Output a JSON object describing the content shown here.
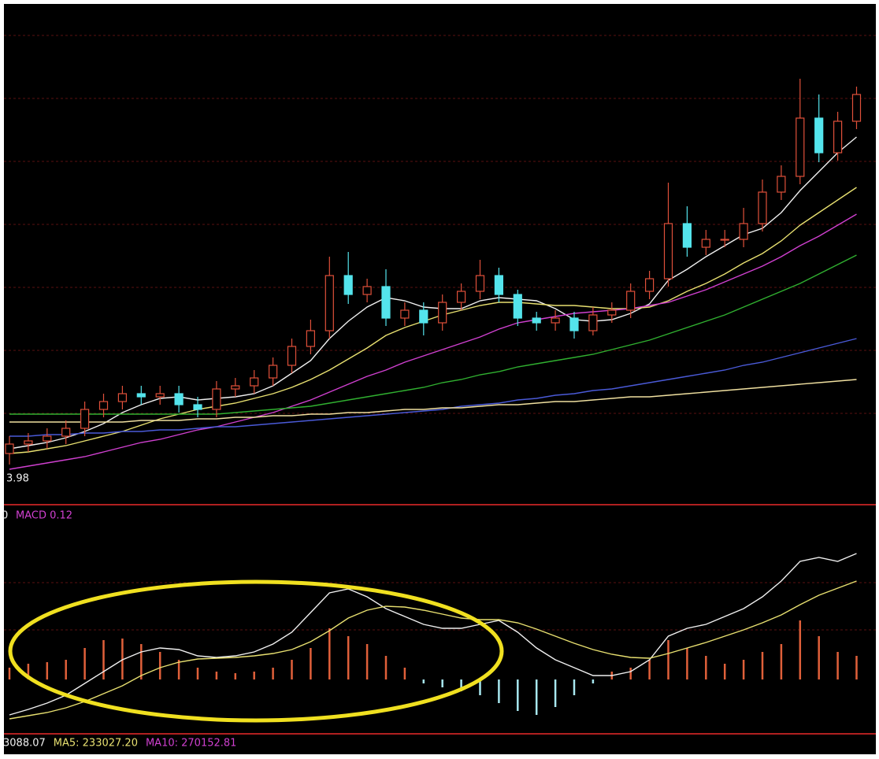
{
  "chart_data": [
    {
      "type": "candlestick",
      "open": [
        4.05,
        4.11,
        4.13,
        4.16,
        4.21,
        4.33,
        4.38,
        4.43,
        4.41,
        4.43,
        4.36,
        4.33,
        4.46,
        4.48,
        4.53,
        4.61,
        4.73,
        4.83,
        5.18,
        5.06,
        5.11,
        4.91,
        4.96,
        4.88,
        5.01,
        5.08,
        5.18,
        5.06,
        4.91,
        4.88,
        4.91,
        4.83,
        4.93,
        4.96,
        5.08,
        5.16,
        5.51,
        5.36,
        5.41,
        5.41,
        5.51,
        5.71,
        5.81,
        6.18,
        5.96,
        6.16
      ],
      "high": [
        4.16,
        4.18,
        4.21,
        4.26,
        4.38,
        4.43,
        4.48,
        4.48,
        4.48,
        4.48,
        4.41,
        4.51,
        4.53,
        4.58,
        4.66,
        4.78,
        4.9,
        5.3,
        5.33,
        5.16,
        5.22,
        5.01,
        5.01,
        5.06,
        5.13,
        5.28,
        5.23,
        5.09,
        4.95,
        4.96,
        4.95,
        4.98,
        5.01,
        5.13,
        5.21,
        5.77,
        5.62,
        5.47,
        5.47,
        5.61,
        5.79,
        5.88,
        6.43,
        6.33,
        6.22,
        6.38
      ],
      "low": [
        3.98,
        4.06,
        4.08,
        4.11,
        4.16,
        4.28,
        4.33,
        4.36,
        4.36,
        4.31,
        4.28,
        4.28,
        4.41,
        4.43,
        4.48,
        4.56,
        4.68,
        4.78,
        5.0,
        5.01,
        4.86,
        4.86,
        4.8,
        4.83,
        4.96,
        5.03,
        5.01,
        4.86,
        4.83,
        4.83,
        4.78,
        4.8,
        4.88,
        4.91,
        5.03,
        5.11,
        5.3,
        5.31,
        5.36,
        5.36,
        5.46,
        5.66,
        5.76,
        5.9,
        5.91,
        6.11
      ],
      "close": [
        4.11,
        4.13,
        4.16,
        4.21,
        4.33,
        4.38,
        4.43,
        4.41,
        4.43,
        4.36,
        4.33,
        4.46,
        4.48,
        4.53,
        4.61,
        4.73,
        4.83,
        5.18,
        5.06,
        5.11,
        4.91,
        4.96,
        4.88,
        5.01,
        5.08,
        5.18,
        5.06,
        4.91,
        4.88,
        4.91,
        4.83,
        4.93,
        4.96,
        5.08,
        5.16,
        5.51,
        5.36,
        5.41,
        5.41,
        5.51,
        5.71,
        5.81,
        6.18,
        5.96,
        6.16,
        6.33
      ],
      "up_color": "#e0503a",
      "down_color": "#54e4ec",
      "ylim": [
        3.73,
        6.905
      ],
      "lines": [
        {
          "color": "#f0f0f0",
          "values": [
            4.08,
            4.1,
            4.12,
            4.15,
            4.19,
            4.24,
            4.31,
            4.36,
            4.4,
            4.41,
            4.39,
            4.4,
            4.41,
            4.43,
            4.48,
            4.56,
            4.64,
            4.78,
            4.89,
            4.98,
            5.04,
            5.02,
            4.98,
            4.97,
            4.97,
            5.02,
            5.04,
            5.03,
            5.02,
            4.97,
            4.9,
            4.89,
            4.9,
            4.94,
            5.0,
            5.15,
            5.22,
            5.3,
            5.37,
            5.44,
            5.48,
            5.58,
            5.72,
            5.84,
            5.96,
            6.06
          ]
        },
        {
          "color": "#e8e070",
          "values": [
            4.05,
            4.06,
            4.08,
            4.1,
            4.13,
            4.16,
            4.19,
            4.23,
            4.27,
            4.3,
            4.33,
            4.35,
            4.37,
            4.4,
            4.43,
            4.47,
            4.52,
            4.58,
            4.65,
            4.72,
            4.8,
            4.85,
            4.89,
            4.93,
            4.96,
            4.99,
            5.01,
            5.01,
            5.0,
            4.99,
            4.99,
            4.98,
            4.97,
            4.97,
            4.98,
            5.02,
            5.08,
            5.13,
            5.19,
            5.26,
            5.32,
            5.4,
            5.5,
            5.58,
            5.66,
            5.74
          ]
        },
        {
          "color": "#d040d0",
          "values": [
            3.95,
            3.97,
            3.99,
            4.01,
            4.03,
            4.06,
            4.09,
            4.12,
            4.14,
            4.17,
            4.2,
            4.22,
            4.25,
            4.28,
            4.31,
            4.35,
            4.39,
            4.44,
            4.49,
            4.54,
            4.58,
            4.63,
            4.67,
            4.71,
            4.75,
            4.79,
            4.84,
            4.88,
            4.9,
            4.92,
            4.94,
            4.95,
            4.96,
            4.97,
            4.99,
            5.01,
            5.05,
            5.09,
            5.14,
            5.19,
            5.24,
            5.3,
            5.37,
            5.43,
            5.5,
            5.57
          ]
        },
        {
          "color": "#30b030",
          "values": [
            4.3,
            4.3,
            4.3,
            4.3,
            4.3,
            4.3,
            4.3,
            4.3,
            4.3,
            4.3,
            4.3,
            4.3,
            4.31,
            4.32,
            4.33,
            4.34,
            4.35,
            4.37,
            4.39,
            4.41,
            4.43,
            4.45,
            4.47,
            4.5,
            4.52,
            4.55,
            4.57,
            4.6,
            4.62,
            4.64,
            4.66,
            4.68,
            4.71,
            4.74,
            4.77,
            4.81,
            4.85,
            4.89,
            4.93,
            4.98,
            5.03,
            5.08,
            5.13,
            5.19,
            5.25,
            5.31
          ]
        },
        {
          "color": "#4a5ad8",
          "values": [
            4.16,
            4.16,
            4.17,
            4.17,
            4.18,
            4.18,
            4.19,
            4.19,
            4.2,
            4.2,
            4.21,
            4.22,
            4.22,
            4.23,
            4.24,
            4.25,
            4.26,
            4.27,
            4.28,
            4.29,
            4.3,
            4.31,
            4.32,
            4.33,
            4.35,
            4.36,
            4.37,
            4.39,
            4.4,
            4.42,
            4.43,
            4.45,
            4.46,
            4.48,
            4.5,
            4.52,
            4.54,
            4.56,
            4.58,
            4.61,
            4.63,
            4.66,
            4.69,
            4.72,
            4.75,
            4.78
          ]
        },
        {
          "color": "#f0e0a0",
          "values": [
            4.25,
            4.25,
            4.25,
            4.25,
            4.25,
            4.25,
            4.25,
            4.26,
            4.26,
            4.26,
            4.27,
            4.27,
            4.28,
            4.28,
            4.29,
            4.29,
            4.3,
            4.3,
            4.31,
            4.31,
            4.32,
            4.33,
            4.33,
            4.34,
            4.34,
            4.35,
            4.36,
            4.36,
            4.37,
            4.38,
            4.38,
            4.39,
            4.4,
            4.41,
            4.41,
            4.42,
            4.43,
            4.44,
            4.45,
            4.46,
            4.47,
            4.48,
            4.49,
            4.5,
            4.51,
            4.52
          ]
        }
      ]
    },
    {
      "type": "macd",
      "prefix": "0",
      "title": "MACD 0.12",
      "title_color": "#d040d0",
      "ylim": [
        -0.07,
        0.213
      ],
      "histogram": [
        0.015,
        0.02,
        0.022,
        0.025,
        0.04,
        0.05,
        0.052,
        0.045,
        0.035,
        0.025,
        0.015,
        0.01,
        0.008,
        0.01,
        0.015,
        0.025,
        0.04,
        0.065,
        0.055,
        0.045,
        0.03,
        0.015,
        -0.005,
        -0.01,
        -0.015,
        -0.02,
        -0.03,
        -0.04,
        -0.045,
        -0.035,
        -0.02,
        -0.005,
        0.01,
        0.015,
        0.025,
        0.05,
        0.04,
        0.03,
        0.02,
        0.025,
        0.035,
        0.045,
        0.075,
        0.055,
        0.035,
        0.03
      ],
      "up_color": "#e0603a",
      "down_color": "#a8e8f0",
      "series": [
        {
          "color": "#f0f0f0",
          "values": [
            -0.045,
            -0.038,
            -0.03,
            -0.02,
            -0.005,
            0.01,
            0.025,
            0.035,
            0.04,
            0.038,
            0.03,
            0.028,
            0.03,
            0.035,
            0.045,
            0.06,
            0.085,
            0.11,
            0.115,
            0.105,
            0.09,
            0.08,
            0.07,
            0.065,
            0.065,
            0.07,
            0.075,
            0.06,
            0.04,
            0.025,
            0.015,
            0.005,
            0.005,
            0.01,
            0.025,
            0.055,
            0.065,
            0.07,
            0.08,
            0.09,
            0.105,
            0.125,
            0.15,
            0.155,
            0.15,
            0.16
          ]
        },
        {
          "color": "#e8e070",
          "values": [
            -0.05,
            -0.046,
            -0.042,
            -0.036,
            -0.028,
            -0.018,
            -0.008,
            0.005,
            0.015,
            0.022,
            0.026,
            0.027,
            0.028,
            0.03,
            0.033,
            0.038,
            0.048,
            0.062,
            0.078,
            0.088,
            0.093,
            0.092,
            0.088,
            0.083,
            0.078,
            0.076,
            0.076,
            0.072,
            0.064,
            0.055,
            0.046,
            0.038,
            0.032,
            0.028,
            0.027,
            0.033,
            0.04,
            0.047,
            0.055,
            0.063,
            0.072,
            0.082,
            0.095,
            0.107,
            0.116,
            0.125
          ]
        }
      ]
    }
  ],
  "volume_header": [
    {
      "text": "3088.07",
      "color": "#f0f0f0"
    },
    {
      "text": "MA5: 233027.20",
      "color": "#e8e070"
    },
    {
      "text": "MA10: 270152.81",
      "color": "#d040d0"
    }
  ]
}
